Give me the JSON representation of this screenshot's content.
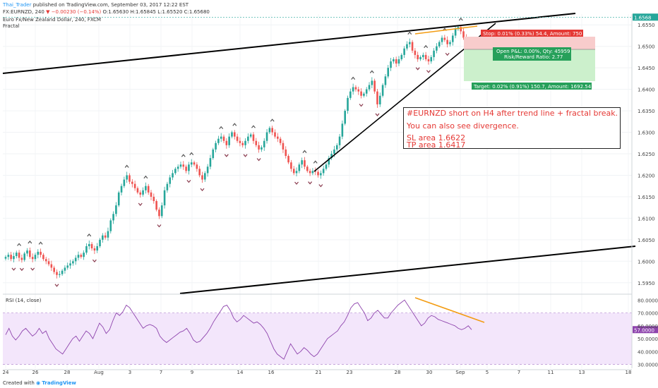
{
  "header": {
    "username": "Thai_Trader",
    "published": " published on TradingView.com, September 03, 2017 12:22 EST",
    "ohlc_prefix": "FX:EURNZD, 240 ",
    "change": "−0.00230 (−0.14%)",
    "ohlc": " O:1.65630 H:1.65845 L:1.65520 C:1.65680",
    "instrument": "Euro Fx/New Zealand Dollar, 240, FXCM",
    "indicator": "Fractal"
  },
  "colors": {
    "up_candle": "#26a69a",
    "down_candle": "#ef5350",
    "rsi_line": "#8e44ad",
    "rsi_band": "#f3e6fb",
    "trend_line": "#000000",
    "divergence": "#f39c12",
    "stop_fill": "#f8cccc",
    "target_fill": "#ccf0cc"
  },
  "trade_box": {
    "stop_label": "Stop: 0.01% (0.33%) 54.4, Amount: 750",
    "open_label_1": "Open P&L: 0.00%, Qty: 45959",
    "open_label_2": "Risk/Reward Ratio: 2.77",
    "target_label": "Target: 0.02% (0.91%) 150.7, Amount: 1692.54"
  },
  "annotation": {
    "line1": "#EURNZD short on H4 after trend line + fractal break.",
    "line2": "You can also see divergence.",
    "line3": "SL area 1.6622",
    "line4": "TP area 1.6417"
  },
  "rsi_label": "RSI (14, close)",
  "footer": {
    "created": "Created with",
    "brand": "TradingView"
  },
  "chart_data": [
    {
      "type": "candlestick",
      "instrument": "EURNZD 240",
      "x_tick_labels": [
        "24",
        "26",
        "28",
        "Aug",
        "3",
        "7",
        "9",
        "14",
        "16",
        "21",
        "23",
        "28",
        "30",
        "Sep",
        "5",
        "7",
        "11",
        "13",
        "18"
      ],
      "y_tick_labels": [
        "1.5950",
        "1.6000",
        "1.6050",
        "1.6100",
        "1.6150",
        "1.6200",
        "1.6250",
        "1.6300",
        "1.6350",
        "1.6400",
        "1.6450",
        "1.6500",
        "1.6550"
      ],
      "ylim": [
        1.5925,
        1.6575
      ],
      "current_price": 1.6568,
      "closes": [
        1.601,
        1.6015,
        1.6005,
        1.6012,
        1.602,
        1.6008,
        1.6003,
        1.6018,
        1.6025,
        1.601,
        1.6005,
        1.6015,
        1.6022,
        1.6015,
        1.6005,
        1.6,
        1.5993,
        1.5985,
        1.5975,
        1.5968,
        1.597,
        1.5978,
        1.5985,
        1.599,
        1.5995,
        1.6,
        1.6008,
        1.6015,
        1.601,
        1.602,
        1.6035,
        1.604,
        1.603,
        1.6025,
        1.6035,
        1.605,
        1.606,
        1.6055,
        1.607,
        1.6095,
        1.611,
        1.613,
        1.616,
        1.6175,
        1.619,
        1.62,
        1.6185,
        1.618,
        1.617,
        1.616,
        1.6155,
        1.6165,
        1.6175,
        1.616,
        1.615,
        1.614,
        1.612,
        1.6105,
        1.613,
        1.6165,
        1.618,
        1.6195,
        1.6205,
        1.6215,
        1.622,
        1.6225,
        1.622,
        1.621,
        1.6225,
        1.623,
        1.6225,
        1.6215,
        1.62,
        1.619,
        1.6205,
        1.622,
        1.624,
        1.626,
        1.6275,
        1.6285,
        1.629,
        1.628,
        1.627,
        1.629,
        1.63,
        1.629,
        1.628,
        1.6275,
        1.627,
        1.628,
        1.629,
        1.6295,
        1.628,
        1.627,
        1.626,
        1.6265,
        1.628,
        1.63,
        1.631,
        1.63,
        1.629,
        1.6285,
        1.6275,
        1.626,
        1.6245,
        1.623,
        1.6215,
        1.6205,
        1.621,
        1.6225,
        1.6235,
        1.622,
        1.621,
        1.6205,
        1.621,
        1.6208,
        1.62,
        1.6205,
        1.6215,
        1.6225,
        1.624,
        1.625,
        1.626,
        1.627,
        1.629,
        1.632,
        1.635,
        1.638,
        1.6395,
        1.6405,
        1.64,
        1.6395,
        1.6385,
        1.639,
        1.64,
        1.641,
        1.642,
        1.6395,
        1.6365,
        1.6385,
        1.641,
        1.643,
        1.645,
        1.6465,
        1.647,
        1.646,
        1.647,
        1.648,
        1.6495,
        1.6505,
        1.651,
        1.649,
        1.648,
        1.647,
        1.6475,
        1.648,
        1.647,
        1.6465,
        1.6475,
        1.649,
        1.65,
        1.651,
        1.652,
        1.6515,
        1.6505,
        1.651,
        1.6525,
        1.654,
        1.6545,
        1.6535,
        1.652,
        1.651,
        1.65,
        1.6495
      ]
    },
    {
      "type": "line",
      "name": "RSI (14, close)",
      "y_tick_labels": [
        "30.0000",
        "40.0000",
        "50.0000",
        "60.0000",
        "70.0000",
        "80.0000"
      ],
      "ylim": [
        27,
        84
      ],
      "band": [
        30,
        70
      ],
      "current_value": 57,
      "values": [
        53,
        58,
        52,
        49,
        52,
        56,
        58,
        55,
        52,
        54,
        58,
        54,
        56,
        50,
        46,
        42,
        40,
        38,
        42,
        46,
        50,
        52,
        48,
        52,
        56,
        54,
        50,
        56,
        62,
        59,
        54,
        57,
        64,
        70,
        68,
        71,
        76,
        74,
        70,
        66,
        62,
        58,
        60,
        61,
        60,
        58,
        52,
        49,
        47,
        49,
        51,
        53,
        55,
        56,
        58,
        54,
        49,
        47,
        48,
        51,
        54,
        58,
        63,
        67,
        71,
        75,
        76,
        72,
        66,
        63,
        65,
        68,
        66,
        64,
        62,
        63,
        61,
        58,
        54,
        48,
        42,
        38,
        36,
        34,
        40,
        46,
        42,
        38,
        40,
        43,
        41,
        38,
        36,
        38,
        42,
        46,
        50,
        52,
        54,
        56,
        60,
        63,
        68,
        74,
        77,
        78,
        74,
        70,
        64,
        66,
        70,
        72,
        69,
        66,
        66,
        70,
        73,
        76,
        78,
        80,
        76,
        72,
        68,
        64,
        60,
        62,
        66,
        68,
        67,
        65,
        64,
        63,
        62,
        61,
        60,
        58,
        57,
        58,
        60,
        57
      ]
    }
  ]
}
